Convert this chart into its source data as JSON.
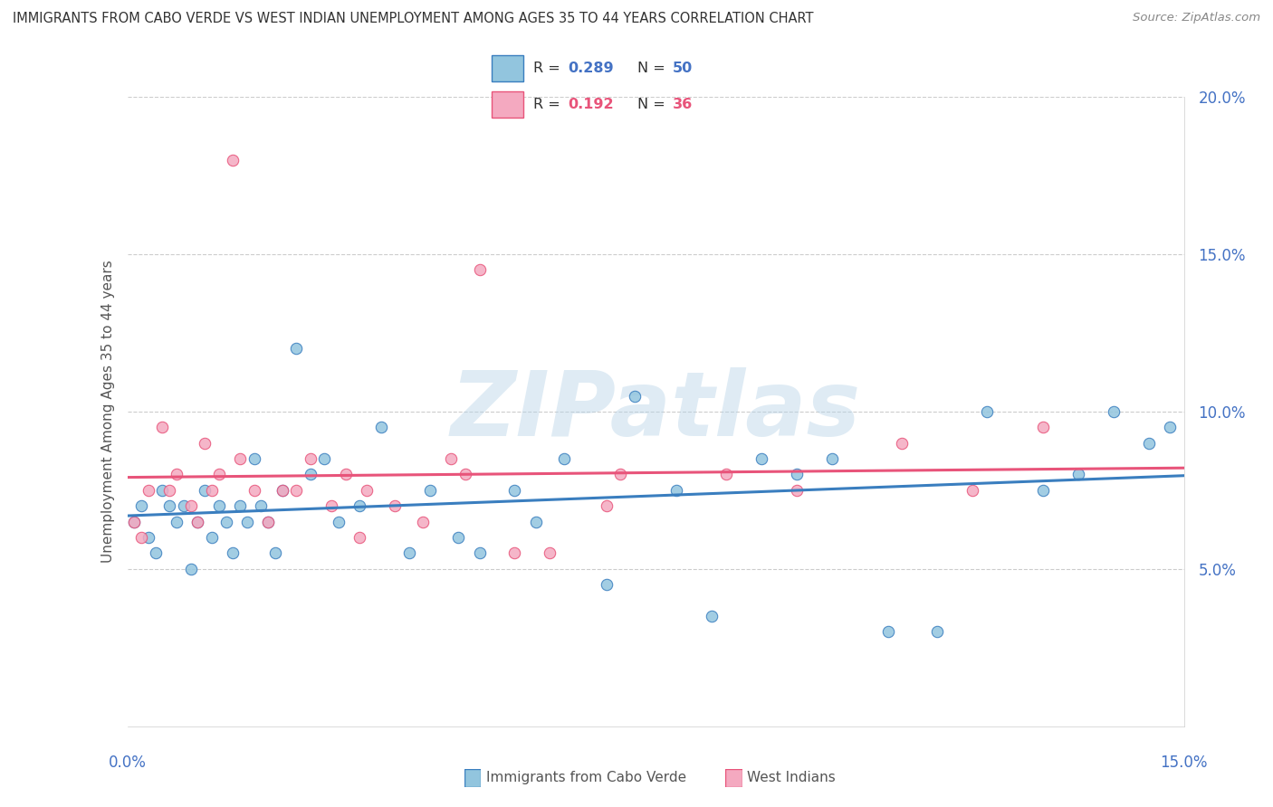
{
  "title": "IMMIGRANTS FROM CABO VERDE VS WEST INDIAN UNEMPLOYMENT AMONG AGES 35 TO 44 YEARS CORRELATION CHART",
  "source": "Source: ZipAtlas.com",
  "ylabel": "Unemployment Among Ages 35 to 44 years",
  "xlim": [
    0.0,
    15.0
  ],
  "ylim": [
    0.0,
    20.0
  ],
  "legend_r1": "0.289",
  "legend_n1": "50",
  "legend_r2": "0.192",
  "legend_n2": "36",
  "blue_color": "#92c5de",
  "pink_color": "#f4a9c0",
  "blue_line_color": "#3a7ebf",
  "pink_line_color": "#e8547a",
  "watermark": "ZIPatlas",
  "cabo_verde_x": [
    0.1,
    0.2,
    0.3,
    0.4,
    0.5,
    0.6,
    0.7,
    0.8,
    0.9,
    1.0,
    1.1,
    1.2,
    1.3,
    1.4,
    1.5,
    1.6,
    1.7,
    1.8,
    1.9,
    2.0,
    2.1,
    2.2,
    2.4,
    2.6,
    2.8,
    3.0,
    3.3,
    3.6,
    4.0,
    4.3,
    4.7,
    5.0,
    5.5,
    5.8,
    6.2,
    6.8,
    7.2,
    7.8,
    8.3,
    9.0,
    9.5,
    10.0,
    10.8,
    11.5,
    12.2,
    13.0,
    13.5,
    14.0,
    14.5,
    14.8
  ],
  "cabo_verde_y": [
    6.5,
    7.0,
    6.0,
    5.5,
    7.5,
    7.0,
    6.5,
    7.0,
    5.0,
    6.5,
    7.5,
    6.0,
    7.0,
    6.5,
    5.5,
    7.0,
    6.5,
    8.5,
    7.0,
    6.5,
    5.5,
    7.5,
    12.0,
    8.0,
    8.5,
    6.5,
    7.0,
    9.5,
    5.5,
    7.5,
    6.0,
    5.5,
    7.5,
    6.5,
    8.5,
    4.5,
    10.5,
    7.5,
    3.5,
    8.5,
    8.0,
    8.5,
    3.0,
    3.0,
    10.0,
    7.5,
    8.0,
    10.0,
    9.0,
    9.5
  ],
  "west_indian_x": [
    0.1,
    0.2,
    0.3,
    0.5,
    0.6,
    0.7,
    0.9,
    1.0,
    1.1,
    1.2,
    1.3,
    1.5,
    1.6,
    1.8,
    2.0,
    2.2,
    2.4,
    2.6,
    2.9,
    3.1,
    3.4,
    3.8,
    4.2,
    4.6,
    5.0,
    5.5,
    6.0,
    7.0,
    8.5,
    9.5,
    11.0,
    12.0,
    13.0,
    3.3,
    4.8,
    6.8
  ],
  "west_indian_y": [
    6.5,
    6.0,
    7.5,
    9.5,
    7.5,
    8.0,
    7.0,
    6.5,
    9.0,
    7.5,
    8.0,
    18.0,
    8.5,
    7.5,
    6.5,
    7.5,
    7.5,
    8.5,
    7.0,
    8.0,
    7.5,
    7.0,
    6.5,
    8.5,
    14.5,
    5.5,
    5.5,
    8.0,
    8.0,
    7.5,
    9.0,
    7.5,
    9.5,
    6.0,
    8.0,
    7.0
  ]
}
